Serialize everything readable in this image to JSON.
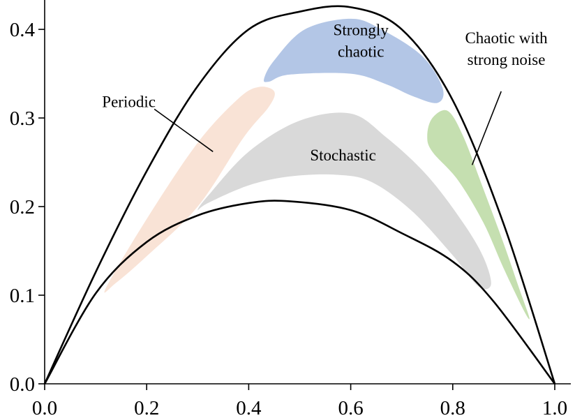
{
  "chart_data": {
    "type": "region-diagram",
    "xlim": [
      0.0,
      1.0
    ],
    "ylim": [
      0.0,
      0.43
    ],
    "x_ticks": [
      "0.0",
      "0.2",
      "0.4",
      "0.6",
      "0.8",
      "1.0"
    ],
    "y_ticks": [
      "0.0",
      "0.1",
      "0.2",
      "0.3",
      "0.4"
    ],
    "x_tick_values": [
      0.0,
      0.2,
      0.4,
      0.6,
      0.8,
      1.0
    ],
    "y_tick_values": [
      0.0,
      0.1,
      0.2,
      0.3,
      0.4
    ],
    "boundaries": {
      "upper": {
        "name": "upper boundary",
        "points": [
          [
            0.0,
            0.0
          ],
          [
            0.1,
            0.126
          ],
          [
            0.2,
            0.24
          ],
          [
            0.3,
            0.336
          ],
          [
            0.4,
            0.4
          ],
          [
            0.5,
            0.42
          ],
          [
            0.6,
            0.425
          ],
          [
            0.7,
            0.4
          ],
          [
            0.8,
            0.32
          ],
          [
            0.9,
            0.18
          ],
          [
            1.0,
            0.0
          ]
        ]
      },
      "lower": {
        "name": "lower boundary",
        "points": [
          [
            0.0,
            0.0
          ],
          [
            0.1,
            0.102
          ],
          [
            0.2,
            0.16
          ],
          [
            0.3,
            0.19
          ],
          [
            0.4,
            0.204
          ],
          [
            0.48,
            0.206
          ],
          [
            0.6,
            0.196
          ],
          [
            0.7,
            0.17
          ],
          [
            0.8,
            0.138
          ],
          [
            0.88,
            0.093
          ],
          [
            1.0,
            0.0
          ]
        ]
      }
    },
    "regions": [
      {
        "name": "Periodic",
        "color": "#f7d9c8",
        "opacity": 0.75,
        "polygon": [
          [
            0.12,
            0.108
          ],
          [
            0.2,
            0.186
          ],
          [
            0.3,
            0.272
          ],
          [
            0.38,
            0.322
          ],
          [
            0.42,
            0.335
          ],
          [
            0.45,
            0.33
          ],
          [
            0.44,
            0.313
          ],
          [
            0.39,
            0.278
          ],
          [
            0.3,
            0.2
          ],
          [
            0.2,
            0.144
          ],
          [
            0.14,
            0.114
          ]
        ]
      },
      {
        "name": "Strongly chaotic",
        "color": "#b3c6e6",
        "opacity": 1.0,
        "polygon": [
          [
            0.43,
            0.344
          ],
          [
            0.45,
            0.365
          ],
          [
            0.51,
            0.4
          ],
          [
            0.6,
            0.412
          ],
          [
            0.66,
            0.4
          ],
          [
            0.74,
            0.37
          ],
          [
            0.78,
            0.334
          ],
          [
            0.77,
            0.317
          ],
          [
            0.72,
            0.325
          ],
          [
            0.67,
            0.338
          ],
          [
            0.6,
            0.35
          ],
          [
            0.48,
            0.349
          ],
          [
            0.44,
            0.341
          ]
        ]
      },
      {
        "name": "Stochastic",
        "color": "#d9d9d9",
        "opacity": 1.0,
        "polygon": [
          [
            0.3,
            0.196
          ],
          [
            0.32,
            0.212
          ],
          [
            0.4,
            0.262
          ],
          [
            0.5,
            0.297
          ],
          [
            0.6,
            0.305
          ],
          [
            0.67,
            0.278
          ],
          [
            0.75,
            0.235
          ],
          [
            0.82,
            0.182
          ],
          [
            0.86,
            0.143
          ],
          [
            0.875,
            0.112
          ],
          [
            0.85,
            0.11
          ],
          [
            0.8,
            0.145
          ],
          [
            0.72,
            0.195
          ],
          [
            0.64,
            0.228
          ],
          [
            0.57,
            0.236
          ],
          [
            0.48,
            0.234
          ],
          [
            0.4,
            0.224
          ],
          [
            0.32,
            0.204
          ]
        ]
      },
      {
        "name": "Chaotic with strong noise",
        "color": "#c5dfb0",
        "opacity": 1.0,
        "polygon": [
          [
            0.75,
            0.28
          ],
          [
            0.76,
            0.3
          ],
          [
            0.79,
            0.308
          ],
          [
            0.82,
            0.28
          ],
          [
            0.86,
            0.22
          ],
          [
            0.9,
            0.158
          ],
          [
            0.93,
            0.108
          ],
          [
            0.95,
            0.075
          ],
          [
            0.94,
            0.082
          ],
          [
            0.9,
            0.13
          ],
          [
            0.86,
            0.182
          ],
          [
            0.81,
            0.23
          ],
          [
            0.76,
            0.262
          ]
        ]
      }
    ],
    "annotations": [
      {
        "lines": [
          "Periodic"
        ],
        "anchor": [
          0.165,
          0.318
        ],
        "pointer_from": [
          0.215,
          0.31
        ],
        "pointer_to": [
          0.33,
          0.262
        ],
        "align": "middle"
      },
      {
        "lines": [
          "Strongly",
          "chaotic"
        ],
        "anchor": [
          0.62,
          0.387
        ],
        "pointer_from": null,
        "pointer_to": null,
        "align": "middle"
      },
      {
        "lines": [
          "Stochastic"
        ],
        "anchor": [
          0.585,
          0.258
        ],
        "pointer_from": null,
        "pointer_to": null,
        "align": "middle"
      },
      {
        "lines": [
          "Chaotic with",
          "strong noise"
        ],
        "anchor": [
          0.905,
          0.378
        ],
        "pointer_from": [
          0.895,
          0.33
        ],
        "pointer_to": [
          0.838,
          0.247
        ],
        "align": "middle"
      }
    ]
  }
}
